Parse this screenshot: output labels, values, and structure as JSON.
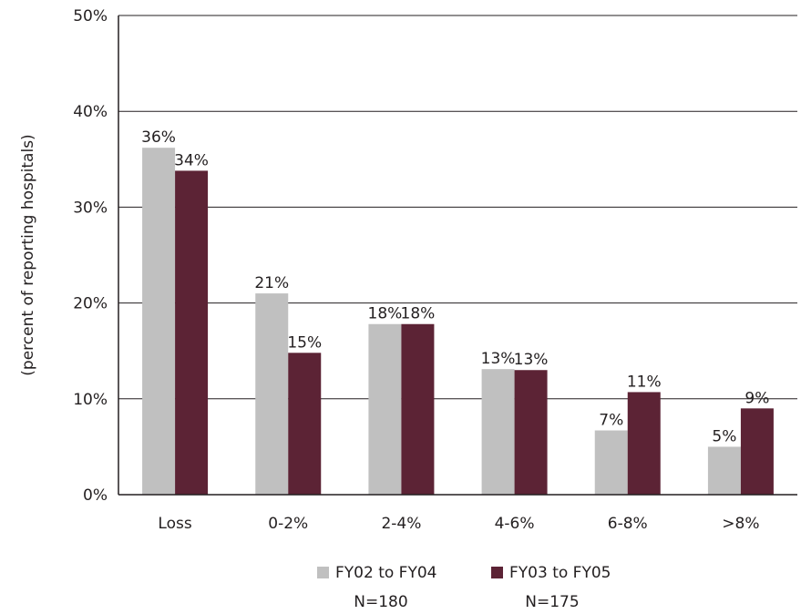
{
  "chart_data": {
    "type": "bar",
    "title": "",
    "xlabel": "",
    "ylabel": "(percent of reporting hospitals)",
    "categories": [
      "Loss",
      "0-2%",
      "2-4%",
      "4-6%",
      "6-8%",
      ">8%"
    ],
    "series": [
      {
        "name": "FY02 to FY04",
        "note": "N=180",
        "color": "#c0c0c0",
        "values": [
          36.2,
          21.0,
          17.8,
          13.1,
          6.7,
          5.0
        ],
        "labels": [
          "36%",
          "21%",
          "18%",
          "13%",
          "7%",
          "5%"
        ]
      },
      {
        "name": "FY03 to FY05",
        "note": "N=175",
        "color": "#5c2335",
        "values": [
          33.8,
          14.8,
          17.8,
          13.0,
          10.7,
          9.0
        ],
        "labels": [
          "34%",
          "15%",
          "18%",
          "13%",
          "11%",
          "9%"
        ]
      }
    ],
    "ylim": [
      0,
      50
    ],
    "yticks": [
      0,
      10,
      20,
      30,
      40,
      50
    ],
    "ytick_labels": [
      "0%",
      "10%",
      "20%",
      "30%",
      "40%",
      "50%"
    ],
    "grid": true,
    "legend_position": "bottom"
  }
}
